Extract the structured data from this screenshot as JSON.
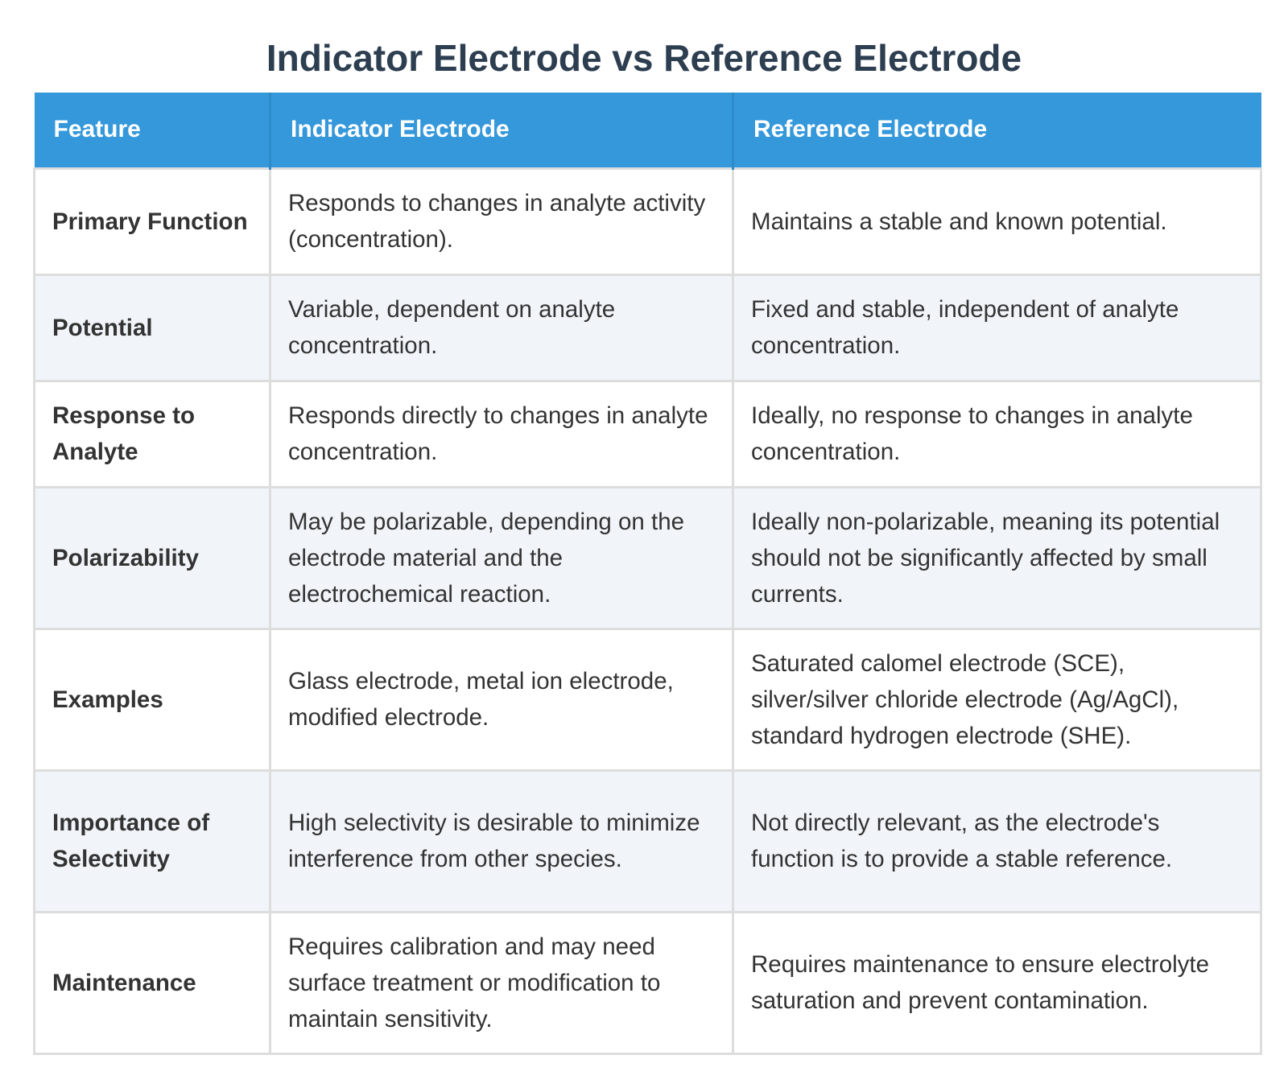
{
  "title": "Indicator Electrode vs Reference Electrode",
  "table": {
    "headers": [
      "Feature",
      "Indicator Electrode",
      "Reference Electrode"
    ],
    "rows": [
      {
        "feature": "Primary Function",
        "indicator": "Responds to changes in analyte activity (concentration).",
        "reference": "Maintains a stable and known potential."
      },
      {
        "feature": "Potential",
        "indicator": "Variable, dependent on analyte concentration.",
        "reference": "Fixed and stable, independent of analyte concentration."
      },
      {
        "feature": "Response to Analyte",
        "indicator": "Responds directly to changes in analyte concentration.",
        "reference": "Ideally, no response to changes in analyte concentration."
      },
      {
        "feature": "Polarizability",
        "indicator": "May be polarizable, depending on the electrode material and the electrochemical reaction.",
        "reference": "Ideally non-polarizable, meaning its potential should not be significantly affected by small currents."
      },
      {
        "feature": "Examples",
        "indicator": "Glass electrode, metal ion electrode, modified electrode.",
        "reference": "Saturated calomel electrode (SCE), silver/silver chloride electrode (Ag/AgCl), standard hydrogen electrode (SHE)."
      },
      {
        "feature": "Importance of Selectivity",
        "indicator": "High selectivity is desirable to minimize interference from other species.",
        "reference": "Not directly relevant, as the electrode's function is to provide a stable reference."
      },
      {
        "feature": "Maintenance",
        "indicator": "Requires calibration and may need surface treatment or modification to maintain sensitivity.",
        "reference": "Requires maintenance to ensure electrolyte saturation and prevent contamination."
      }
    ]
  },
  "colors": {
    "header_bg": "#3498db",
    "title": "#2c3e50",
    "row_alt": "#f1f5f9",
    "border": "#dddddd"
  }
}
